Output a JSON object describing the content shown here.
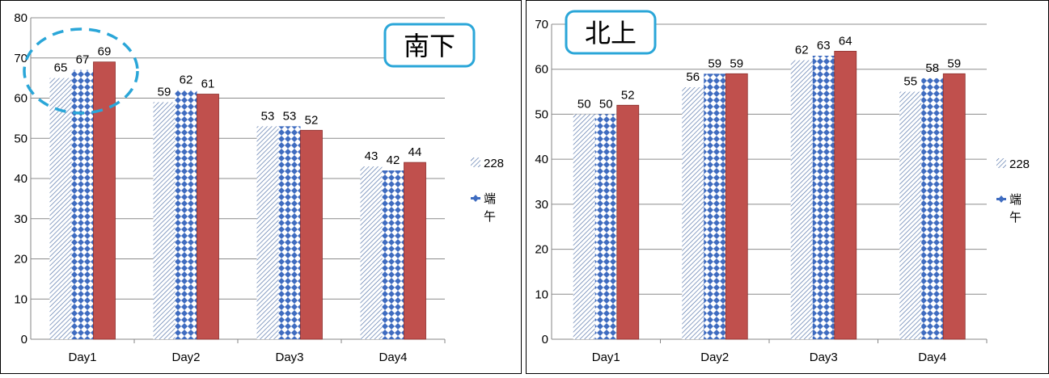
{
  "chart_data": [
    {
      "type": "bar",
      "title": "南下",
      "categories": [
        "Day1",
        "Day2",
        "Day3",
        "Day4"
      ],
      "series": [
        {
          "name": "228",
          "values": [
            65,
            59,
            53,
            43
          ]
        },
        {
          "name": "端午",
          "values": [
            67,
            62,
            53,
            42
          ]
        },
        {
          "name": "",
          "values": [
            69,
            61,
            52,
            44
          ]
        }
      ],
      "ylim": [
        0,
        80
      ],
      "yticks": [
        0,
        10,
        20,
        30,
        40,
        50,
        60,
        70,
        80
      ],
      "grid": true,
      "legend": "right",
      "highlight": "Day1"
    },
    {
      "type": "bar",
      "title": "北上",
      "categories": [
        "Day1",
        "Day2",
        "Day3",
        "Day4"
      ],
      "series": [
        {
          "name": "228",
          "values": [
            50,
            56,
            62,
            55
          ]
        },
        {
          "name": "端午",
          "values": [
            50,
            59,
            63,
            58
          ]
        },
        {
          "name": "",
          "values": [
            52,
            59,
            64,
            59
          ]
        }
      ],
      "ylim": [
        0,
        70
      ],
      "yticks": [
        0,
        10,
        20,
        30,
        40,
        50,
        60,
        70
      ],
      "grid": true,
      "legend": "right"
    }
  ],
  "colors": {
    "series_228": "#4f6fa6",
    "series_duanwu": "#3f6cc0",
    "series_third": "#c0504d",
    "title_border": "#2aa6d8",
    "highlight": "#2aa6d8",
    "grid": "#8c8c8c"
  }
}
